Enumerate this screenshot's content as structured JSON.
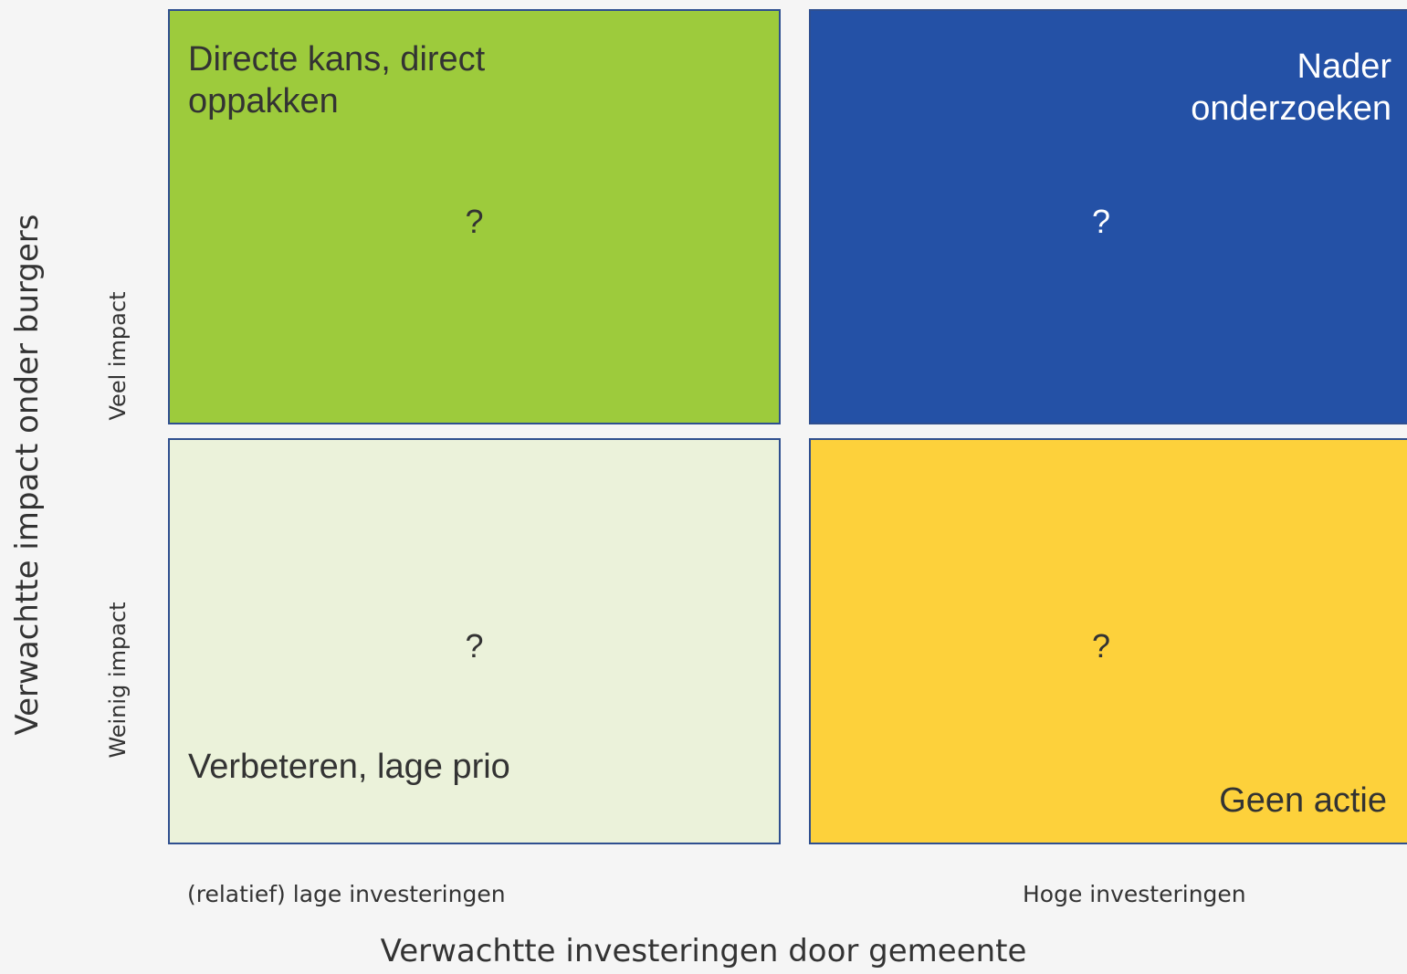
{
  "axes": {
    "y_title": "Verwachtte impact onder burgers",
    "y_high": "Veel impact",
    "y_low": "Weinig impact",
    "x_title": "Verwachtte investeringen door gemeente",
    "x_low": "(relatief) lage investeringen",
    "x_high": "Hoge investeringen"
  },
  "quadrants": [
    {
      "label": "Directe kans, direct oppakken",
      "content": "?"
    },
    {
      "label": "Nader onderzoeken",
      "content": "?"
    },
    {
      "label": "Verbeteren, lage prio",
      "content": "?"
    },
    {
      "label": "Geen actie",
      "content": "?"
    }
  ]
}
